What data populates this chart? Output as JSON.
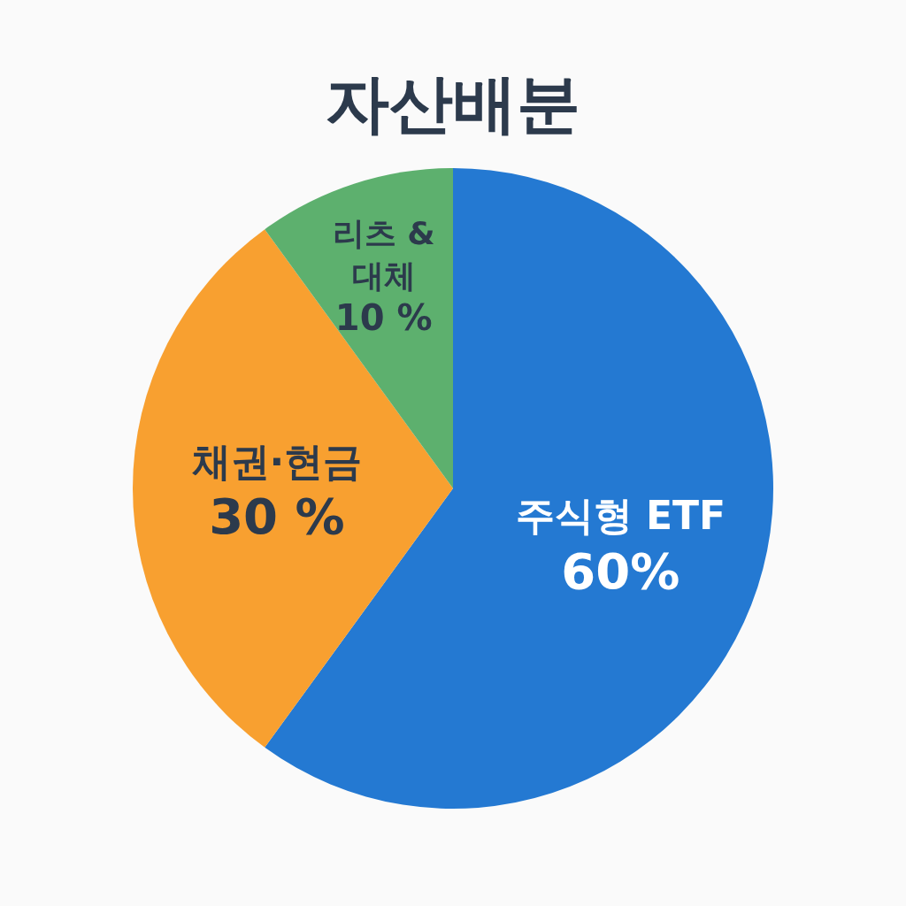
{
  "chart_data": {
    "type": "pie",
    "title": "자산배분",
    "categories": [
      "주식형 ETF",
      "채권·현금",
      "리츠 & 대체"
    ],
    "values": [
      60,
      30,
      10
    ],
    "value_labels": [
      "60%",
      "30 %",
      "10 %"
    ],
    "colors": [
      "#2479d2",
      "#f8a030",
      "#5db06e"
    ]
  }
}
